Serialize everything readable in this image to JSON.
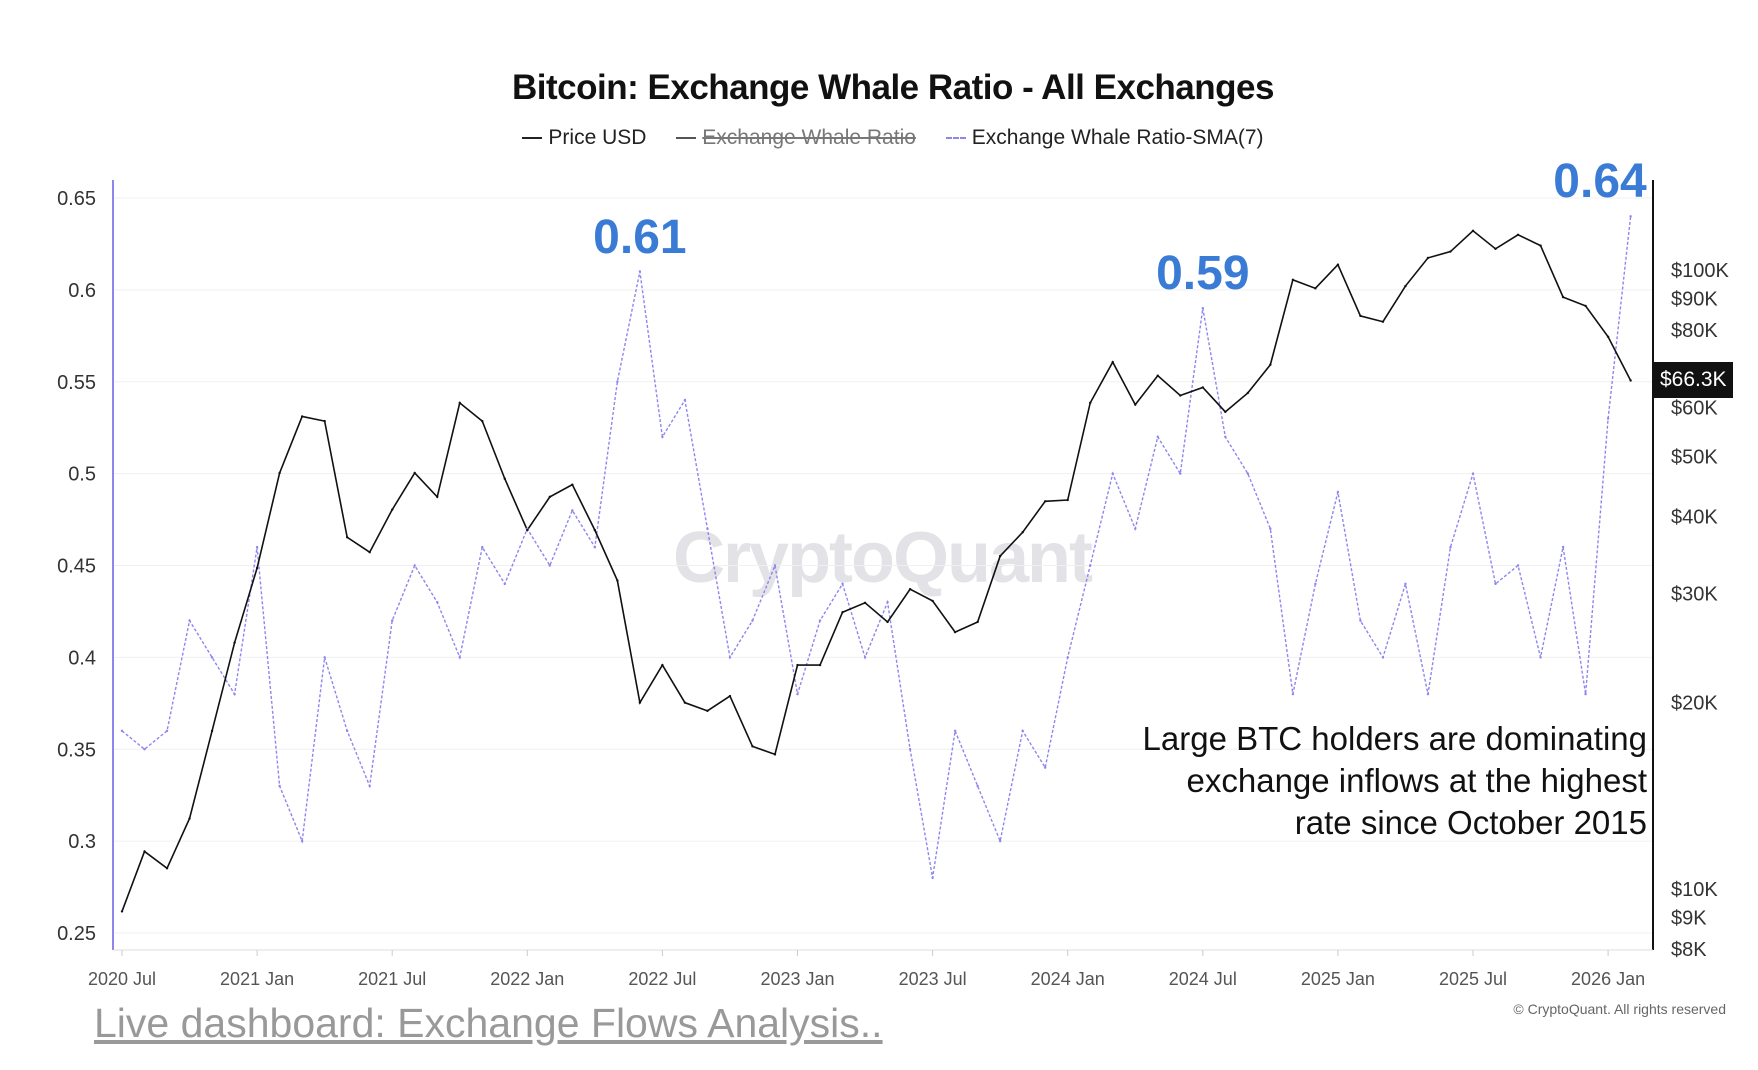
{
  "chart_data": {
    "type": "line",
    "title": "Bitcoin: Exchange Whale Ratio - All Exchanges",
    "legend": {
      "placement": "top",
      "items": [
        {
          "label": "Price USD",
          "color": "#222222",
          "style": "solid"
        },
        {
          "label": "Exchange Whale Ratio",
          "color": "#555555",
          "style": "solid",
          "hidden": true
        },
        {
          "label": "Exchange Whale Ratio-SMA(7)",
          "color": "#8d86ee",
          "style": "dashed"
        }
      ]
    },
    "x_ticks": [
      "2020 Jul",
      "2021 Jan",
      "2021 Jul",
      "2022 Jan",
      "2022 Jul",
      "2023 Jan",
      "2023 Jul",
      "2024 Jan",
      "2024 Jul",
      "2025 Jan",
      "2025 Jul",
      "2026 Jan"
    ],
    "y_left": {
      "ticks": [
        "0.65",
        "0.6",
        "0.55",
        "0.5",
        "0.45",
        "0.4",
        "0.35",
        "0.3",
        "0.25"
      ],
      "range": [
        0.25,
        0.65
      ]
    },
    "y_right": {
      "scale": "log",
      "ticks": [
        "$100K",
        "$90K",
        "$80K",
        "$60K",
        "$50K",
        "$40K",
        "$30K",
        "$20K",
        "$10K",
        "$9K",
        "$8K"
      ],
      "tick_values": [
        100000,
        90000,
        80000,
        60000,
        50000,
        40000,
        30000,
        20000,
        10000,
        9000,
        8000
      ],
      "current_label": "$66.3K",
      "current_value": 66300
    },
    "dates": [
      "2020-07",
      "2020-08",
      "2020-09",
      "2020-10",
      "2020-11",
      "2020-12",
      "2021-01",
      "2021-02",
      "2021-03",
      "2021-04",
      "2021-05",
      "2021-06",
      "2021-07",
      "2021-08",
      "2021-09",
      "2021-10",
      "2021-11",
      "2021-12",
      "2022-01",
      "2022-02",
      "2022-03",
      "2022-04",
      "2022-05",
      "2022-06",
      "2022-07",
      "2022-08",
      "2022-09",
      "2022-10",
      "2022-11",
      "2022-12",
      "2023-01",
      "2023-02",
      "2023-03",
      "2023-04",
      "2023-05",
      "2023-06",
      "2023-07",
      "2023-08",
      "2023-09",
      "2023-10",
      "2023-11",
      "2023-12",
      "2024-01",
      "2024-02",
      "2024-03",
      "2024-04",
      "2024-05",
      "2024-06",
      "2024-07",
      "2024-08",
      "2024-09",
      "2024-10",
      "2024-11",
      "2024-12",
      "2025-01",
      "2025-02",
      "2025-03",
      "2025-04",
      "2025-05",
      "2025-06",
      "2025-07",
      "2025-08",
      "2025-09",
      "2025-10",
      "2025-11",
      "2025-12",
      "2026-01",
      "2026-02"
    ],
    "series": [
      {
        "name": "Price USD",
        "axis": "right",
        "values": [
          9200,
          11500,
          10800,
          13000,
          18000,
          25000,
          33000,
          47000,
          58000,
          57000,
          37000,
          35000,
          41000,
          47000,
          43000,
          61000,
          57000,
          46000,
          38000,
          43000,
          45000,
          38000,
          31500,
          20000,
          23000,
          20000,
          19400,
          20500,
          17000,
          16500,
          23000,
          23000,
          28000,
          29000,
          27000,
          30500,
          29200,
          26000,
          27000,
          34500,
          37700,
          42300,
          42500,
          61000,
          71000,
          60600,
          67500,
          62700,
          64600,
          59000,
          63300,
          70300,
          96400,
          93400,
          102000,
          84300,
          82500,
          94200,
          104600,
          107100,
          115700,
          108200,
          114000,
          109500,
          90400,
          87500,
          78000,
          66300
        ]
      },
      {
        "name": "Exchange Whale Ratio-SMA(7)",
        "axis": "left",
        "values": [
          0.36,
          0.35,
          0.36,
          0.42,
          0.4,
          0.38,
          0.46,
          0.33,
          0.3,
          0.4,
          0.36,
          0.33,
          0.42,
          0.45,
          0.43,
          0.4,
          0.46,
          0.44,
          0.47,
          0.45,
          0.48,
          0.46,
          0.55,
          0.61,
          0.52,
          0.54,
          0.47,
          0.4,
          0.42,
          0.45,
          0.38,
          0.42,
          0.44,
          0.4,
          0.43,
          0.35,
          0.28,
          0.36,
          0.33,
          0.3,
          0.36,
          0.34,
          0.4,
          0.45,
          0.5,
          0.47,
          0.52,
          0.5,
          0.59,
          0.52,
          0.5,
          0.47,
          0.38,
          0.44,
          0.49,
          0.42,
          0.4,
          0.44,
          0.38,
          0.46,
          0.5,
          0.44,
          0.45,
          0.4,
          0.46,
          0.38,
          0.53,
          0.64
        ]
      }
    ],
    "annotations": {
      "peaks": [
        {
          "label": "0.61",
          "date": "2022-06",
          "value": 0.61
        },
        {
          "label": "0.59",
          "date": "2024-07",
          "value": 0.59
        },
        {
          "label": "0.64",
          "date": "2026-02",
          "value": 0.64
        }
      ],
      "note_lines": [
        "Large BTC holders are dominating",
        "exchange inflows at the highest",
        "rate since October 2015"
      ]
    },
    "grid": true,
    "peak_color": "#3a7bd5"
  },
  "watermark": "CryptoQuant",
  "footer": {
    "link": "Live dashboard: Exchange Flows Analysis..",
    "copyright": "© CryptoQuant. All rights reserved"
  }
}
